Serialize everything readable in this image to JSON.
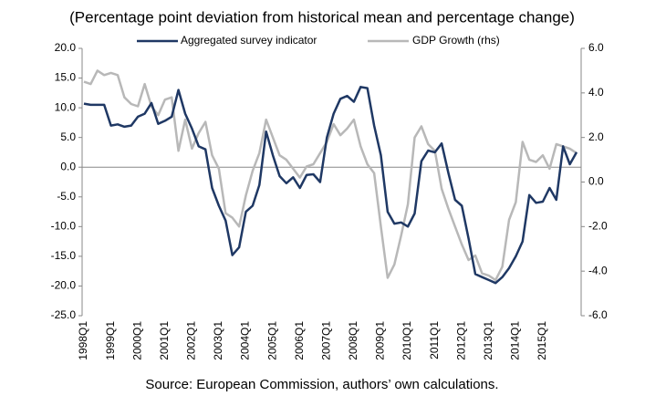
{
  "chart_data": {
    "type": "line",
    "subtitle": "(Percentage point deviation from historical mean and percentage change)",
    "source": "Source: European Commission, authors’ own calculations.",
    "categories": [
      "1998Q1",
      null,
      null,
      null,
      "1999Q1",
      null,
      null,
      null,
      "2000Q1",
      null,
      null,
      null,
      "2001Q1",
      null,
      null,
      null,
      "2002Q1",
      null,
      null,
      null,
      "2003Q1",
      null,
      null,
      null,
      "2004Q1",
      null,
      null,
      null,
      "2005Q1",
      null,
      null,
      null,
      "2006Q1",
      null,
      null,
      null,
      "2007Q1",
      null,
      null,
      null,
      "2008Q1",
      null,
      null,
      null,
      "2009Q1",
      null,
      null,
      null,
      "2010Q1",
      null,
      null,
      null,
      "2011Q1",
      null,
      null,
      null,
      "2012Q1",
      null,
      null,
      null,
      "2013Q1",
      null,
      null,
      null,
      "2014Q1",
      null,
      null,
      null,
      "2015Q1",
      null,
      null,
      null,
      null,
      null
    ],
    "series": [
      {
        "name": "Aggregated survey indicator",
        "color": "#1f3864",
        "values": [
          10.7,
          10.5,
          10.5,
          10.5,
          7.0,
          7.2,
          6.8,
          7.0,
          8.5,
          9.0,
          10.8,
          7.3,
          7.8,
          8.5,
          13.0,
          9.0,
          6.5,
          3.5,
          3.0,
          -3.5,
          -6.5,
          -9.0,
          -14.8,
          -13.5,
          -7.5,
          -6.5,
          -3.0,
          6.0,
          2.0,
          -1.5,
          -2.7,
          -1.7,
          -3.5,
          -1.3,
          -1.2,
          -2.5,
          5.0,
          9.0,
          11.5,
          12.0,
          11.0,
          13.5,
          13.3,
          7.0,
          2.0,
          -7.5,
          -9.5,
          -9.3,
          -10.0,
          -7.8,
          1.0,
          2.8,
          2.5,
          4.0,
          -1.0,
          -5.5,
          -6.5,
          -12.0,
          -18.0,
          -18.5,
          -19.0,
          -19.5,
          -18.5,
          -17.0,
          -15.0,
          -12.5,
          -4.7,
          -6.0,
          -5.8,
          -3.5,
          -5.5,
          3.5,
          0.5,
          2.5
        ]
      },
      {
        "name": "GDP Growth (rhs)",
        "color": "#b8b8b8",
        "axis": "y2",
        "values": [
          4.5,
          4.4,
          5.0,
          4.8,
          4.9,
          4.8,
          3.8,
          3.5,
          3.4,
          4.4,
          3.4,
          3.0,
          3.7,
          3.8,
          1.4,
          2.8,
          1.5,
          2.2,
          2.7,
          1.2,
          0.6,
          -1.4,
          -1.6,
          -2.0,
          -0.6,
          0.5,
          1.3,
          2.8,
          2.0,
          1.2,
          1.0,
          0.6,
          0.2,
          0.7,
          0.8,
          1.3,
          1.8,
          2.6,
          2.1,
          2.4,
          2.8,
          1.6,
          0.8,
          0.4,
          -2.0,
          -4.3,
          -3.7,
          -2.4,
          -1.0,
          2.0,
          2.5,
          1.7,
          1.4,
          -0.3,
          -1.2,
          -2.0,
          -2.8,
          -3.5,
          -3.3,
          -4.1,
          -4.2,
          -4.4,
          -3.8,
          -1.7,
          -0.9,
          1.8,
          1.0,
          0.9,
          1.2,
          0.6,
          1.7,
          1.6,
          1.5,
          1.3
        ]
      }
    ],
    "ylim": [
      -25,
      20
    ],
    "yticks": [
      {
        "value": -25,
        "label": "-25.0"
      },
      {
        "value": -20,
        "label": "-20.0"
      },
      {
        "value": -15,
        "label": "-15.0"
      },
      {
        "value": -10,
        "label": "-10.0"
      },
      {
        "value": -5,
        "label": "-5.0"
      },
      {
        "value": 0,
        "label": "0.0"
      },
      {
        "value": 5,
        "label": "5.0"
      },
      {
        "value": 10,
        "label": "10.0"
      },
      {
        "value": 15,
        "label": "15.0"
      },
      {
        "value": 20,
        "label": "20.0"
      }
    ],
    "y2lim": [
      -6,
      6
    ],
    "y2ticks": [
      {
        "value": -6,
        "label": "-6.0"
      },
      {
        "value": -4,
        "label": "-4.0"
      },
      {
        "value": -2,
        "label": "-2.0"
      },
      {
        "value": 0,
        "label": "0.0"
      },
      {
        "value": 2,
        "label": "2.0"
      },
      {
        "value": 4,
        "label": "4.0"
      },
      {
        "value": 6,
        "label": "6.0"
      }
    ]
  }
}
